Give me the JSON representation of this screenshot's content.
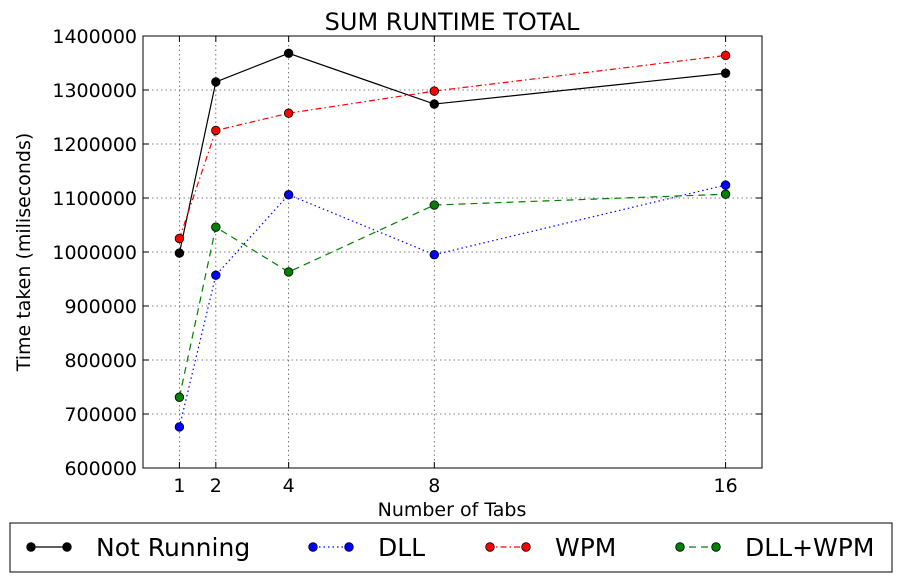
{
  "chart_data": {
    "type": "line",
    "title": "SUM RUNTIME TOTAL",
    "xlabel": "Number of Tabs",
    "ylabel": "Time taken (miliseconds)",
    "x": [
      1,
      2,
      4,
      8,
      16
    ],
    "xticks": [
      1,
      2,
      4,
      8,
      16
    ],
    "xlim": [
      0,
      17
    ],
    "ylim": [
      600000,
      1400000
    ],
    "yticks": [
      600000,
      700000,
      800000,
      900000,
      1000000,
      1100000,
      1200000,
      1300000,
      1400000
    ],
    "grid": true,
    "legend_position": "bottom-outside",
    "series": [
      {
        "name": "Not Running",
        "values": [
          998000,
          1315000,
          1368000,
          1274000,
          1331000
        ],
        "color": "#000000",
        "style": "solid"
      },
      {
        "name": "DLL",
        "values": [
          676000,
          957000,
          1106000,
          995000,
          1124000
        ],
        "color": "#0000ff",
        "style": "dotted"
      },
      {
        "name": "WPM",
        "values": [
          1025000,
          1225000,
          1257000,
          1298000,
          1364000
        ],
        "color": "#ff0000",
        "style": "dashdot"
      },
      {
        "name": "DLL+WPM",
        "values": [
          731000,
          1046000,
          963000,
          1087000,
          1107000
        ],
        "color": "#008000",
        "style": "dashed"
      }
    ]
  }
}
